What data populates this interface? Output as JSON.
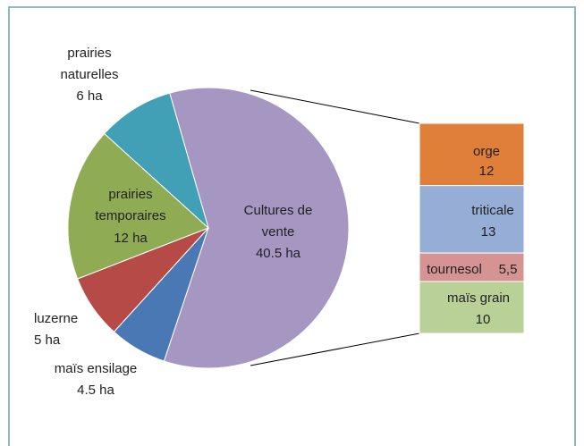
{
  "chart_data": {
    "type": "pie-of-bar",
    "categories": [
      "Cultures de vente",
      "maïs ensilage",
      "luzerne",
      "prairies temporaires",
      "prairies naturelles"
    ],
    "values": [
      40.5,
      4.5,
      5,
      12,
      6
    ],
    "value_labels": [
      "40.5 ha",
      "4.5 ha",
      "5 ha",
      "12 ha",
      "6 ha"
    ],
    "colors": [
      "#a597c1",
      "#4a78b5",
      "#b64a46",
      "#8fac54",
      "#41a0b5"
    ],
    "bar": {
      "categories": [
        "orge",
        "triticale",
        "tournesol",
        "maïs grain"
      ],
      "values": [
        12,
        13,
        5.5,
        10
      ],
      "value_labels": [
        "12",
        "13",
        "5,5",
        "10"
      ],
      "colors": [
        "#e07f3a",
        "#96aed5",
        "#d69393",
        "#b9d097"
      ]
    }
  }
}
